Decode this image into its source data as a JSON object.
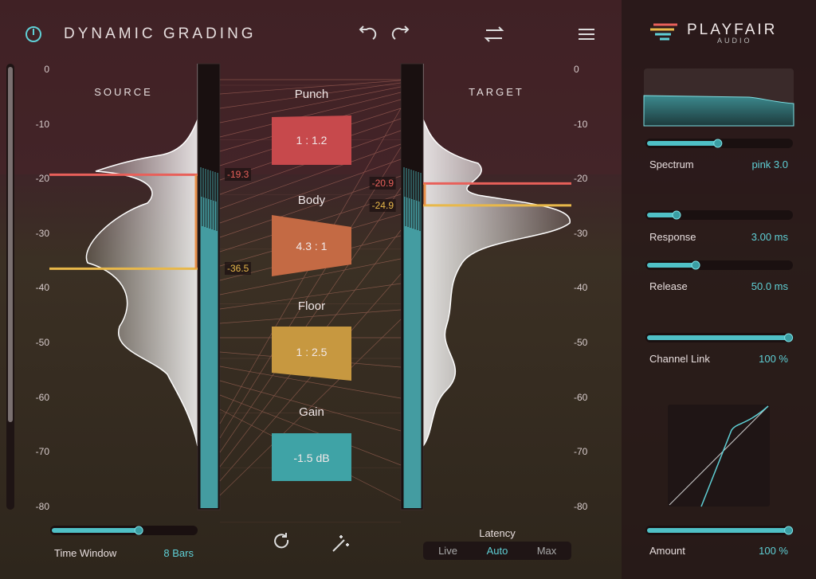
{
  "header": {
    "title": "DYNAMIC GRADING",
    "brand": "PLAYFAIR",
    "brand_sub": "AUDIO"
  },
  "scale": [
    0,
    -10,
    -20,
    -30,
    -40,
    -50,
    -60,
    -70,
    -80
  ],
  "source": {
    "label": "SOURCE",
    "markers": [
      -19.3,
      -36.5
    ]
  },
  "target": {
    "label": "TARGET",
    "markers": [
      -20.9,
      -24.9
    ]
  },
  "bands": [
    {
      "name": "Punch",
      "value": "1 : 1.2"
    },
    {
      "name": "Body",
      "value": "4.3 : 1"
    },
    {
      "name": "Floor",
      "value": "1 : 2.5"
    },
    {
      "name": "Gain",
      "value": "-1.5 dB"
    }
  ],
  "controls": [
    {
      "label": "Spectrum",
      "value": "pink 3.0"
    },
    {
      "label": "Response",
      "value": "3.00 ms"
    },
    {
      "label": "Release",
      "value": "50.0 ms"
    },
    {
      "label": "Channel Link",
      "value": "100 %"
    },
    {
      "label": "Amount",
      "value": "100 %"
    }
  ],
  "time_window": {
    "label": "Time Window",
    "value": "8 Bars"
  },
  "latency": {
    "label": "Latency",
    "options": [
      "Live",
      "Auto",
      "Max"
    ],
    "selected": "Auto"
  }
}
